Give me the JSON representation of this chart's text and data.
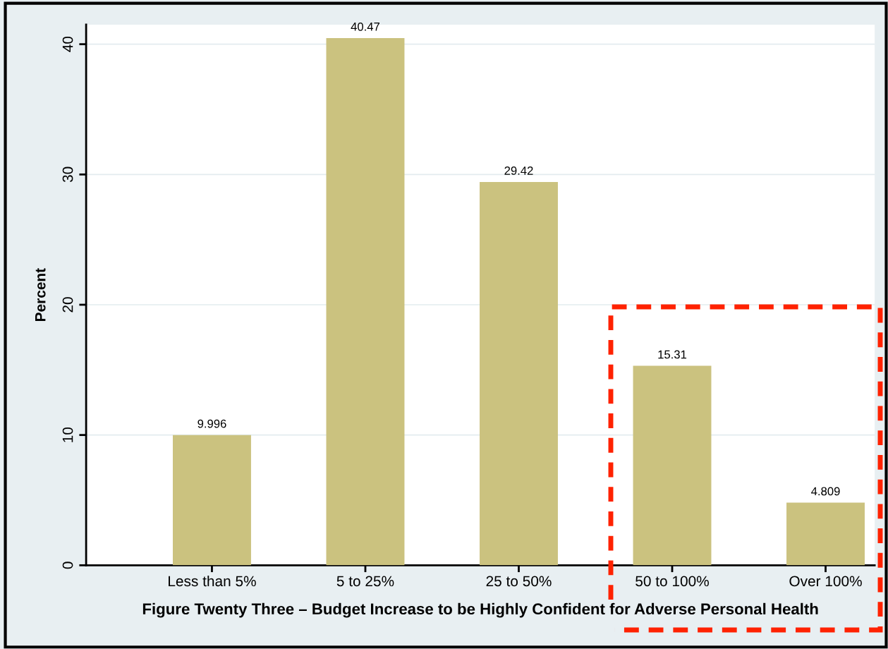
{
  "chart_data": {
    "type": "bar",
    "categories": [
      "Less than 5%",
      "5 to 25%",
      "25 to 50%",
      "50 to 100%",
      "Over 100%"
    ],
    "values": [
      9.996,
      40.47,
      29.42,
      15.31,
      4.809
    ],
    "color": "#cbc27f",
    "xlabel": "Figure Twenty Three – Budget Increase to be Highly Confident for Adverse Personal Health",
    "ylabel": "Percent",
    "ylim": [
      0,
      41.5
    ],
    "yticks": [
      0,
      10,
      20,
      30,
      40
    ],
    "grid": "y",
    "data_labels": true
  }
}
